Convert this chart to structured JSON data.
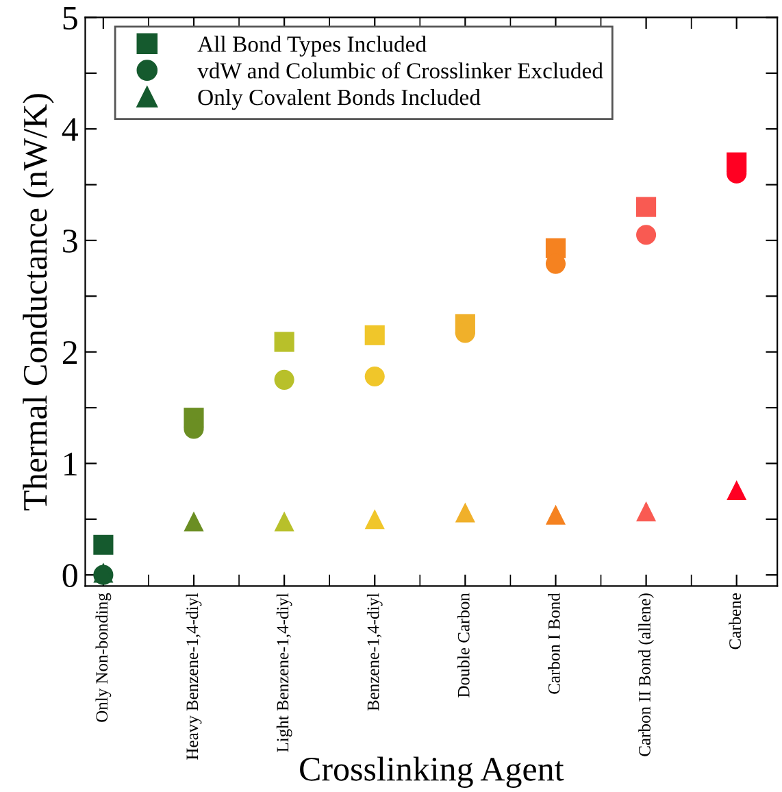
{
  "chart_data": {
    "type": "scatter",
    "xlabel": "Crosslinking Agent",
    "ylabel": "Thermal Conductance (nW/K)",
    "categories": [
      "Only Non-bonding",
      "Heavy Benzene-1,4-diyl",
      "Light Benzene-1,4-diyl",
      "Benzene-1,4-diyl",
      "Double Carbon",
      "Carbon I Bond",
      "Carbon II Bond (allene)",
      "Carbene"
    ],
    "series": [
      {
        "name": "All Bond Types Included",
        "marker": "square",
        "color": "#155a2e",
        "colors": [
          "#155a2e",
          "#6b8e23",
          "#b8c02a",
          "#f0c62a",
          "#f0b02a",
          "#f58220",
          "#f95a52",
          "#ff0022"
        ],
        "values": [
          0.27,
          1.41,
          2.09,
          2.15,
          2.25,
          2.93,
          3.3,
          3.7
        ]
      },
      {
        "name": "vdW and Columbic of Crosslinker Excluded",
        "marker": "circle",
        "color": "#155a2e",
        "colors": [
          "#155a2e",
          "#6b8e23",
          "#b8c02a",
          "#f0c62a",
          "#f0b02a",
          "#f58220",
          "#f95a52",
          "#ff0022"
        ],
        "values": [
          0.0,
          1.31,
          1.75,
          1.78,
          2.17,
          2.79,
          3.05,
          3.6
        ]
      },
      {
        "name": "Only Covalent Bonds Included",
        "marker": "triangle",
        "color": "#155a2e",
        "colors": [
          "#155a2e",
          "#6b8e23",
          "#b8c02a",
          "#f0c62a",
          "#f0b02a",
          "#f58220",
          "#f95a52",
          "#ff0022"
        ],
        "values": [
          0.02,
          0.48,
          0.48,
          0.5,
          0.56,
          0.54,
          0.57,
          0.76
        ]
      }
    ],
    "ylim": [
      -0.1,
      5
    ],
    "yticks": [
      0,
      {
        "value": 0.5,
        "label": null
      },
      1,
      {
        "value": 1.5,
        "label": null
      },
      2,
      {
        "value": 2.5,
        "label": null
      },
      3,
      {
        "value": 3.5,
        "label": null
      },
      4,
      {
        "value": 4.5,
        "label": null
      },
      5
    ],
    "legend": "top left",
    "grid": false
  }
}
